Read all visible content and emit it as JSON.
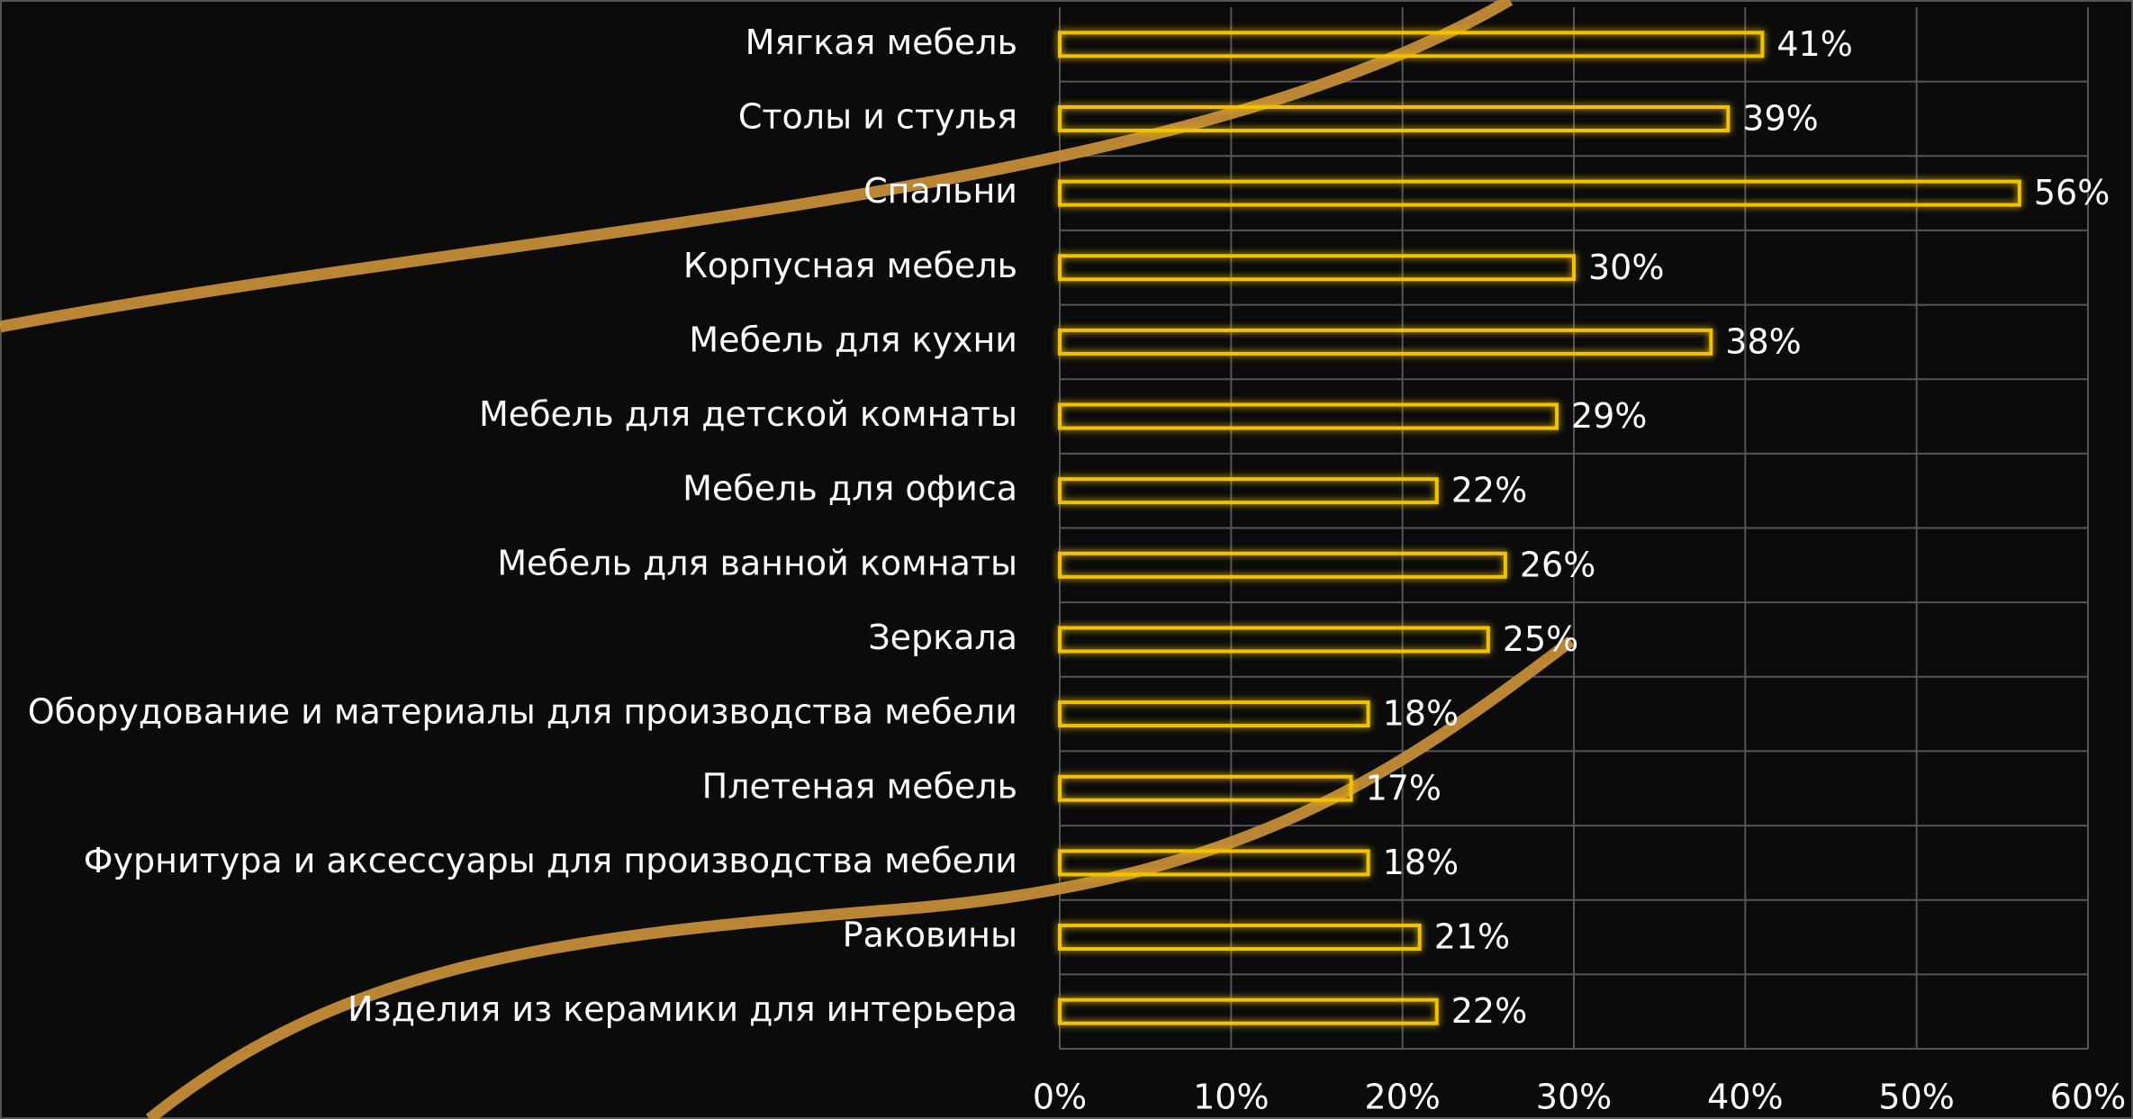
{
  "chart_data": {
    "type": "bar",
    "orientation": "horizontal",
    "categories": [
      "Мягкая мебель",
      "Столы и стулья",
      "Спальни",
      "Корпусная мебель",
      "Мебель для кухни",
      "Мебель для детской комнаты",
      "Мебель для офиса",
      "Мебель для ванной комнаты",
      "Зеркала",
      "Оборудование и материалы для производства мебели",
      "Плетеная мебель",
      "Фурнитура и аксессуары для производства мебели",
      "Раковины",
      "Изделия из керамики для интерьера"
    ],
    "values": [
      41,
      39,
      56,
      30,
      38,
      29,
      22,
      26,
      25,
      18,
      17,
      18,
      21,
      22
    ],
    "value_labels": [
      "41%",
      "39%",
      "56%",
      "30%",
      "38%",
      "29%",
      "22%",
      "26%",
      "25%",
      "18%",
      "17%",
      "18%",
      "21%",
      "22%"
    ],
    "color": "#f2c200",
    "xlim": [
      0,
      60
    ],
    "xticks": [
      {
        "value": 0,
        "label": "0%"
      },
      {
        "value": 10,
        "label": "10%"
      },
      {
        "value": 20,
        "label": "20%"
      },
      {
        "value": 30,
        "label": "30%"
      },
      {
        "value": 40,
        "label": "40%"
      },
      {
        "value": 50,
        "label": "50%"
      },
      {
        "value": 60,
        "label": "60%"
      }
    ],
    "grid": true
  }
}
